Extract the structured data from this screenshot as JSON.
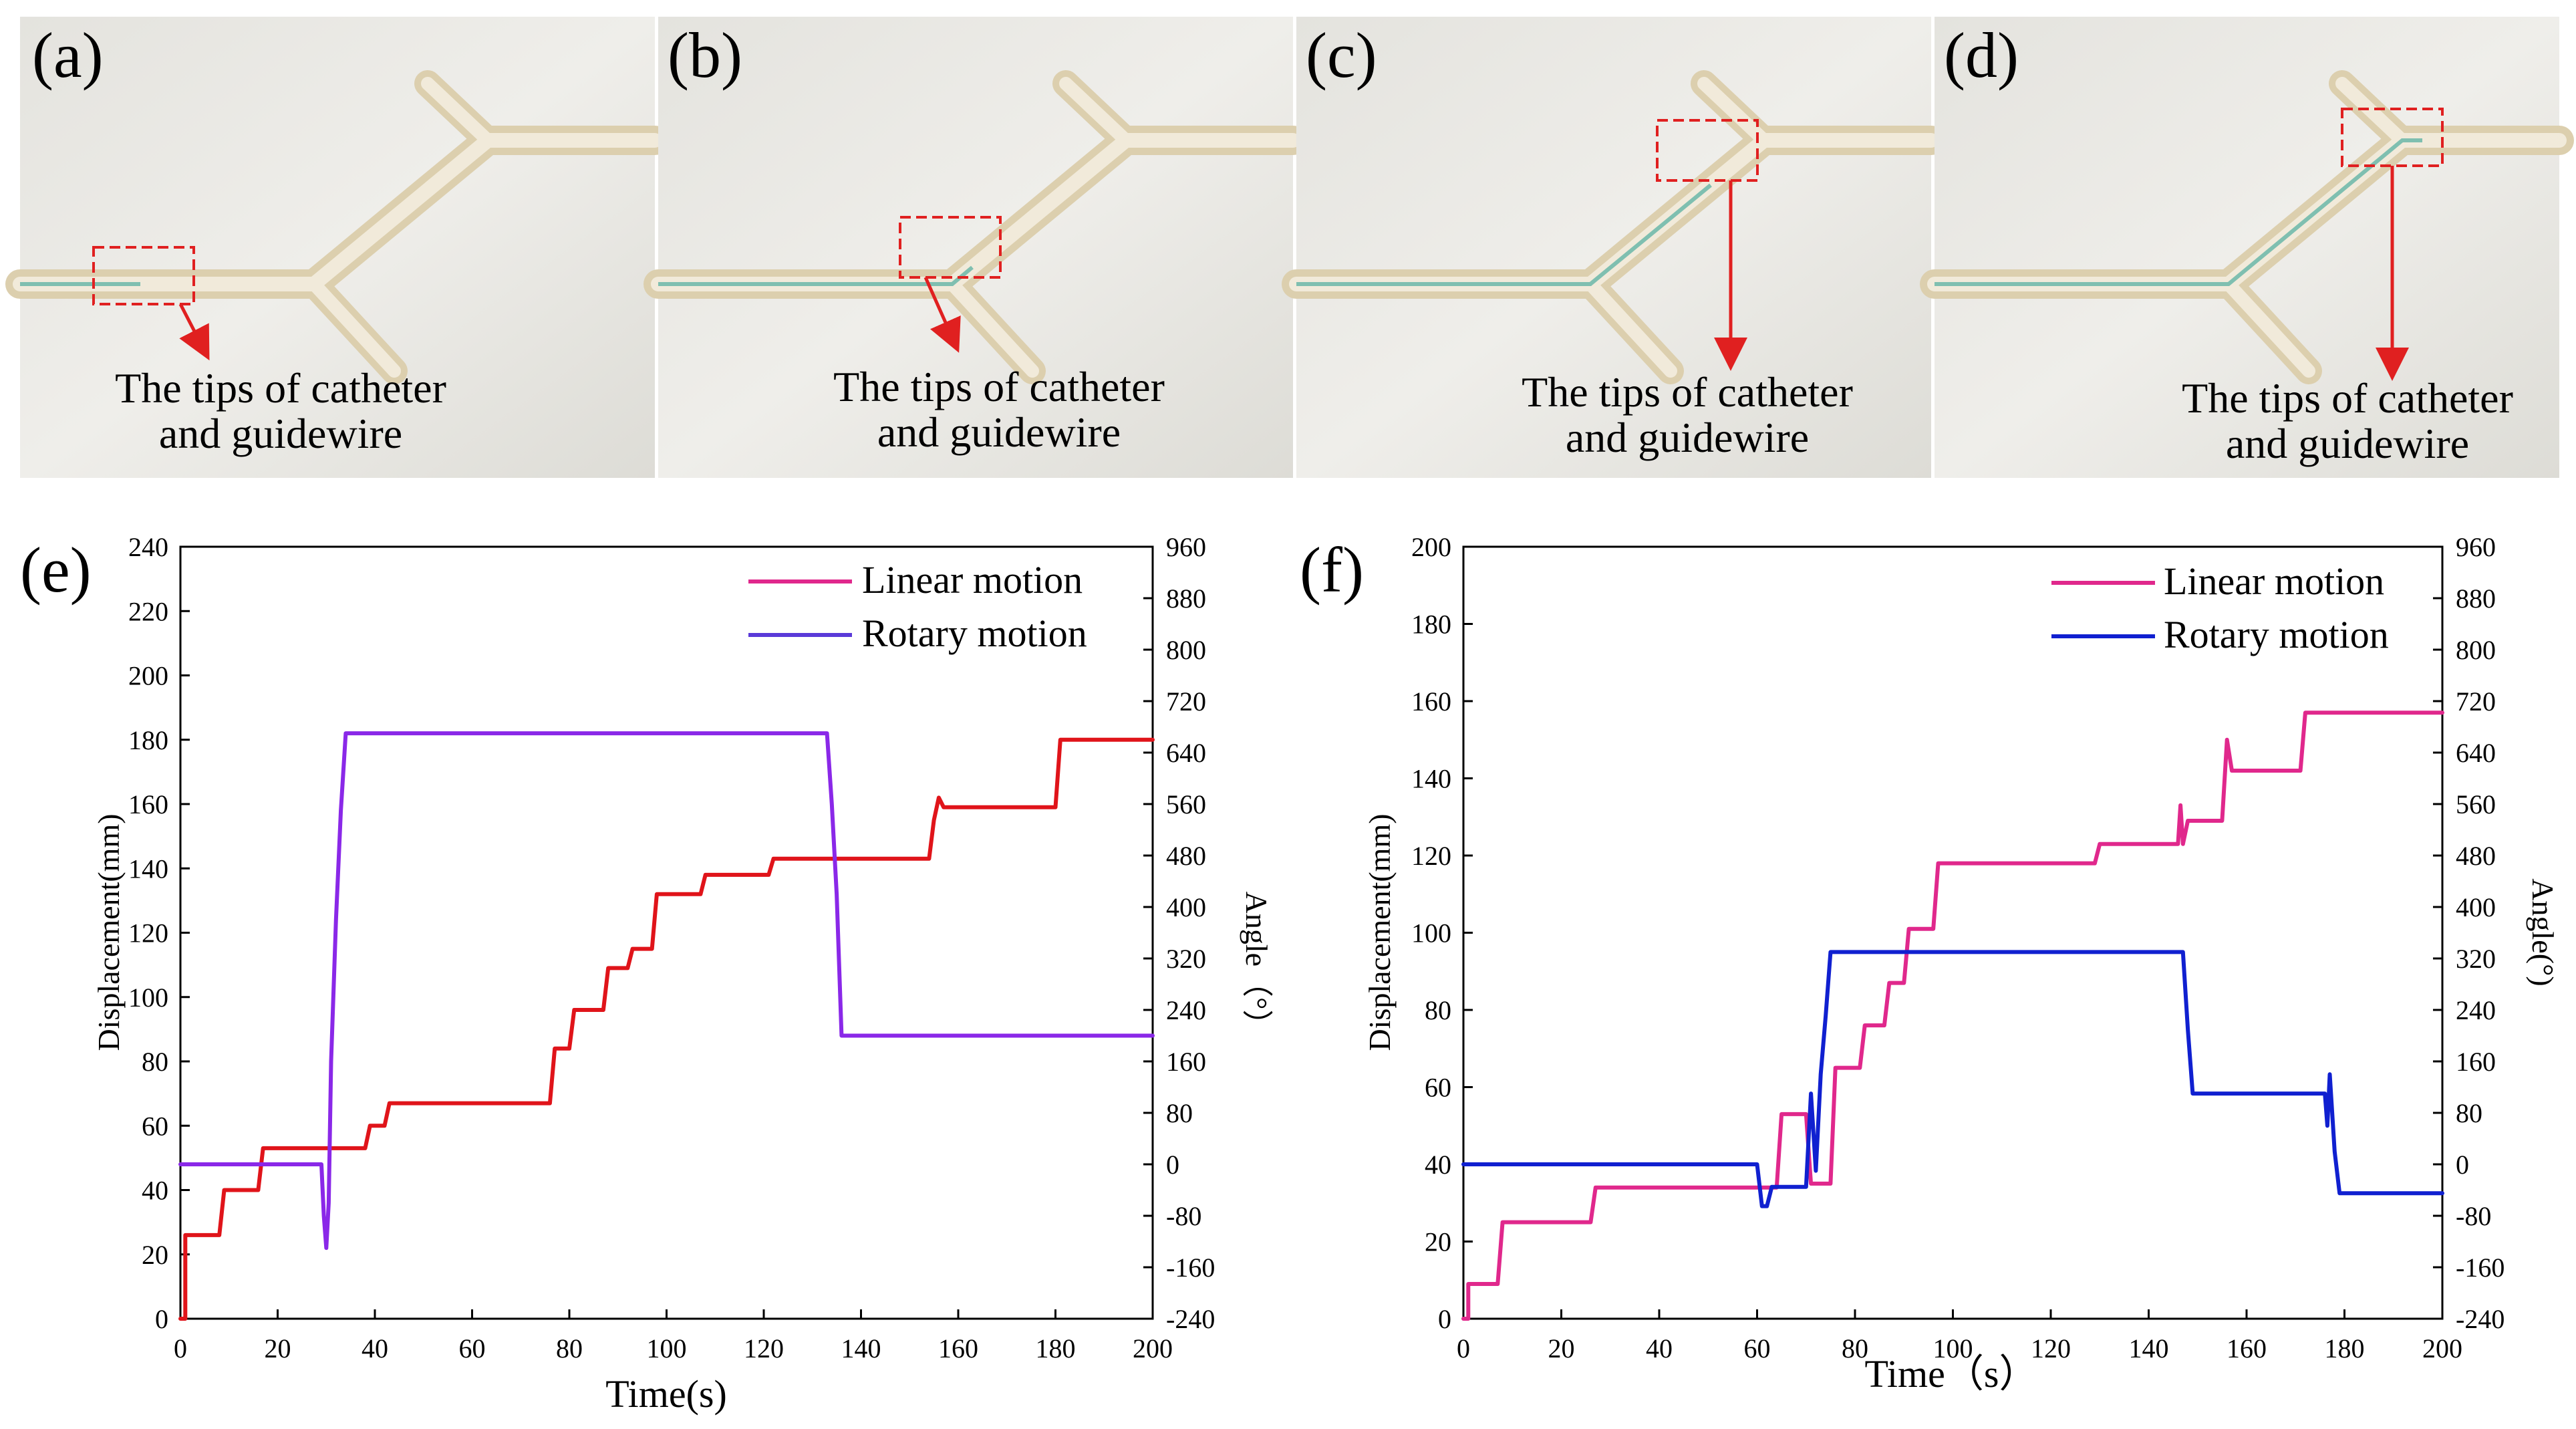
{
  "colors": {
    "red_box": "#e02020",
    "arrow": "#e02020",
    "linear_e": "#e0141a",
    "rotary_e": "#8a28e8",
    "linear_e_legend": "#e0288c",
    "rotary_e_legend": "#5a3ad8",
    "linear_f": "#e0288c",
    "rotary_f": "#1020d0",
    "wall": "#ecebe6",
    "tube": "#e8dcc0",
    "wire": "#7fbfb0"
  },
  "photos": [
    {
      "label": "(a)",
      "annotation_line1": "The tips of catheter",
      "annotation_line2": "and guidewire"
    },
    {
      "label": "(b)",
      "annotation_line1": "The tips of catheter",
      "annotation_line2": "and guidewire"
    },
    {
      "label": "(c)",
      "annotation_line1": "The tips of catheter",
      "annotation_line2": "and guidewire"
    },
    {
      "label": "(d)",
      "annotation_line1": "The tips of catheter",
      "annotation_line2": "and guidewire"
    }
  ],
  "chart_data": [
    {
      "panel": "(e)",
      "type": "line",
      "xlabel": "Time(s)",
      "ylabel": "Displacement(mm)",
      "y2label": "Angle（°）",
      "xlim": [
        0,
        200
      ],
      "ylim": [
        0,
        240
      ],
      "y2lim": [
        -240,
        960
      ],
      "xticks": [
        0,
        20,
        40,
        60,
        80,
        100,
        120,
        140,
        160,
        180,
        200
      ],
      "yticks": [
        0,
        20,
        40,
        60,
        80,
        100,
        120,
        140,
        160,
        180,
        200,
        220,
        240
      ],
      "y2ticks": [
        -240,
        -160,
        -80,
        0,
        80,
        160,
        240,
        320,
        400,
        480,
        560,
        640,
        720,
        800,
        880,
        960
      ],
      "legend_position": "top-right",
      "series": [
        {
          "name": "Linear motion",
          "axis": "left",
          "x": [
            0,
            1,
            1,
            8,
            9,
            16,
            17,
            38,
            39,
            42,
            43,
            76,
            77,
            80,
            81,
            87,
            88,
            92,
            93,
            97,
            98,
            107,
            108,
            121,
            122,
            154,
            155,
            156,
            157,
            180,
            181,
            200
          ],
          "y": [
            0,
            0,
            26,
            26,
            40,
            40,
            53,
            53,
            60,
            60,
            67,
            67,
            84,
            84,
            96,
            96,
            109,
            109,
            115,
            115,
            132,
            132,
            138,
            138,
            143,
            143,
            155,
            162,
            159,
            159,
            180,
            180
          ]
        },
        {
          "name": "Rotary motion",
          "axis": "right",
          "x": [
            0,
            29,
            29.5,
            30,
            30.5,
            31,
            32,
            33,
            34,
            35,
            133,
            134,
            135,
            136,
            137,
            200
          ],
          "y": [
            0,
            0,
            -80,
            -130,
            -60,
            160,
            380,
            550,
            670,
            670,
            670,
            560,
            420,
            200,
            200,
            200
          ]
        }
      ]
    },
    {
      "panel": "(f)",
      "type": "line",
      "xlabel": "Time（s）",
      "ylabel": "Displacement(mm)",
      "y2label": "Angle(°)",
      "xlim": [
        0,
        200
      ],
      "ylim": [
        0,
        200
      ],
      "y2lim": [
        -240,
        960
      ],
      "xticks": [
        0,
        20,
        40,
        60,
        80,
        100,
        120,
        140,
        160,
        180,
        200
      ],
      "yticks": [
        0,
        20,
        40,
        60,
        80,
        100,
        120,
        140,
        160,
        180,
        200
      ],
      "y2ticks": [
        -240,
        -160,
        -80,
        0,
        80,
        160,
        240,
        320,
        400,
        480,
        560,
        640,
        720,
        800,
        880,
        960
      ],
      "legend_position": "top-right",
      "series": [
        {
          "name": "Linear motion",
          "axis": "left",
          "x": [
            0,
            1,
            1,
            7,
            8,
            26,
            27,
            64,
            65,
            70,
            71,
            75,
            76,
            81,
            82,
            86,
            87,
            90,
            91,
            96,
            97,
            129,
            130,
            146,
            146.5,
            147,
            148,
            155,
            156,
            157,
            171,
            172,
            200
          ],
          "y": [
            0,
            0,
            9,
            9,
            25,
            25,
            34,
            34,
            53,
            53,
            35,
            35,
            65,
            65,
            76,
            76,
            87,
            87,
            101,
            101,
            118,
            118,
            123,
            123,
            133,
            123,
            129,
            129,
            150,
            142,
            142,
            157,
            157
          ]
        },
        {
          "name": "Rotary motion",
          "axis": "right",
          "x": [
            0,
            60,
            61,
            62,
            63,
            64,
            70,
            71,
            72,
            73,
            74,
            75,
            146,
            147,
            148,
            149,
            176,
            176.5,
            177,
            178,
            179,
            200
          ],
          "y": [
            0,
            0,
            -65,
            -65,
            -35,
            -35,
            -35,
            110,
            -10,
            140,
            230,
            330,
            330,
            330,
            210,
            110,
            110,
            60,
            140,
            20,
            -45,
            -45
          ]
        }
      ]
    }
  ]
}
